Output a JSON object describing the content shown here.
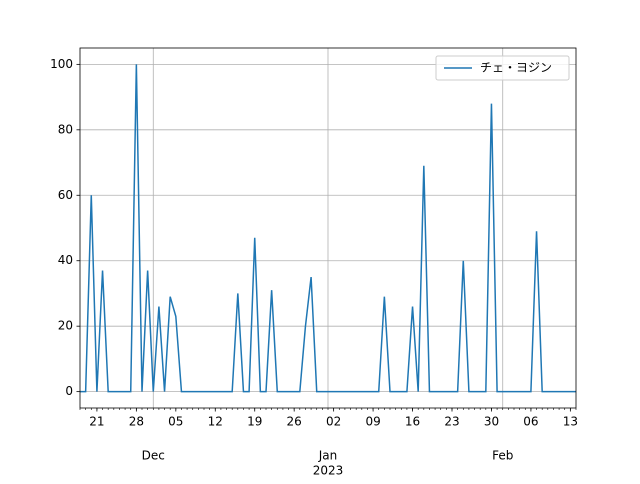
{
  "chart_data": {
    "type": "line",
    "x": [
      "2022-11-18",
      "2022-11-19",
      "2022-11-20",
      "2022-11-21",
      "2022-11-22",
      "2022-11-23",
      "2022-11-24",
      "2022-11-25",
      "2022-11-26",
      "2022-11-27",
      "2022-11-28",
      "2022-11-29",
      "2022-11-30",
      "2022-12-01",
      "2022-12-02",
      "2022-12-03",
      "2022-12-04",
      "2022-12-05",
      "2022-12-06",
      "2022-12-07",
      "2022-12-08",
      "2022-12-09",
      "2022-12-10",
      "2022-12-11",
      "2022-12-12",
      "2022-12-13",
      "2022-12-14",
      "2022-12-15",
      "2022-12-16",
      "2022-12-17",
      "2022-12-18",
      "2022-12-19",
      "2022-12-20",
      "2022-12-21",
      "2022-12-22",
      "2022-12-23",
      "2022-12-24",
      "2022-12-25",
      "2022-12-26",
      "2022-12-27",
      "2022-12-28",
      "2022-12-29",
      "2022-12-30",
      "2022-12-31",
      "2023-01-01",
      "2023-01-02",
      "2023-01-03",
      "2023-01-04",
      "2023-01-05",
      "2023-01-06",
      "2023-01-07",
      "2023-01-08",
      "2023-01-09",
      "2023-01-10",
      "2023-01-11",
      "2023-01-12",
      "2023-01-13",
      "2023-01-14",
      "2023-01-15",
      "2023-01-16",
      "2023-01-17",
      "2023-01-18",
      "2023-01-19",
      "2023-01-20",
      "2023-01-21",
      "2023-01-22",
      "2023-01-23",
      "2023-01-24",
      "2023-01-25",
      "2023-01-26",
      "2023-01-27",
      "2023-01-28",
      "2023-01-29",
      "2023-01-30",
      "2023-01-31",
      "2023-02-01",
      "2023-02-02",
      "2023-02-03",
      "2023-02-04",
      "2023-02-05",
      "2023-02-06",
      "2023-02-07",
      "2023-02-08",
      "2023-02-09",
      "2023-02-10",
      "2023-02-11",
      "2023-02-12",
      "2023-02-13",
      "2023-02-14"
    ],
    "series": [
      {
        "name": "チェ・ヨジン",
        "color": "#1f77b4",
        "values": [
          0,
          0,
          60,
          0,
          37,
          0,
          0,
          0,
          0,
          0,
          100,
          0,
          37,
          0,
          26,
          0,
          29,
          23,
          0,
          0,
          0,
          0,
          0,
          0,
          0,
          0,
          0,
          0,
          30,
          0,
          0,
          47,
          0,
          0,
          31,
          0,
          0,
          0,
          0,
          0,
          20,
          35,
          0,
          0,
          0,
          0,
          0,
          0,
          0,
          0,
          0,
          0,
          0,
          0,
          29,
          0,
          0,
          0,
          0,
          26,
          0,
          69,
          0,
          0,
          0,
          0,
          0,
          0,
          40,
          0,
          0,
          0,
          0,
          88,
          0,
          0,
          0,
          0,
          0,
          0,
          0,
          49,
          0,
          0,
          0,
          0,
          0,
          0,
          0
        ]
      }
    ],
    "xlim": [
      "2022-11-18",
      "2023-02-14"
    ],
    "xticks": [
      {
        "value": "2022-11-21",
        "label": "21"
      },
      {
        "value": "2022-11-28",
        "label": "28"
      },
      {
        "value": "2022-12-05",
        "label": "05"
      },
      {
        "value": "2022-12-12",
        "label": "12"
      },
      {
        "value": "2022-12-19",
        "label": "19"
      },
      {
        "value": "2022-12-26",
        "label": "26"
      },
      {
        "value": "2023-01-02",
        "label": "02"
      },
      {
        "value": "2023-01-09",
        "label": "09"
      },
      {
        "value": "2023-01-16",
        "label": "16"
      },
      {
        "value": "2023-01-23",
        "label": "23"
      },
      {
        "value": "2023-01-30",
        "label": "30"
      },
      {
        "value": "2023-02-06",
        "label": "06"
      },
      {
        "value": "2023-02-13",
        "label": "13"
      }
    ],
    "month_ticks": [
      {
        "value": "2022-12-01",
        "label": "Dec"
      },
      {
        "value": "2023-01-01",
        "label": "Jan"
      },
      {
        "value": "2023-02-01",
        "label": "Feb"
      }
    ],
    "year_label": {
      "value": "2023-01-01",
      "label": "2023"
    },
    "ylim": [
      -5,
      105
    ],
    "yticks": [
      0,
      20,
      40,
      60,
      80,
      100
    ],
    "grid": true,
    "legend": "upper right"
  }
}
